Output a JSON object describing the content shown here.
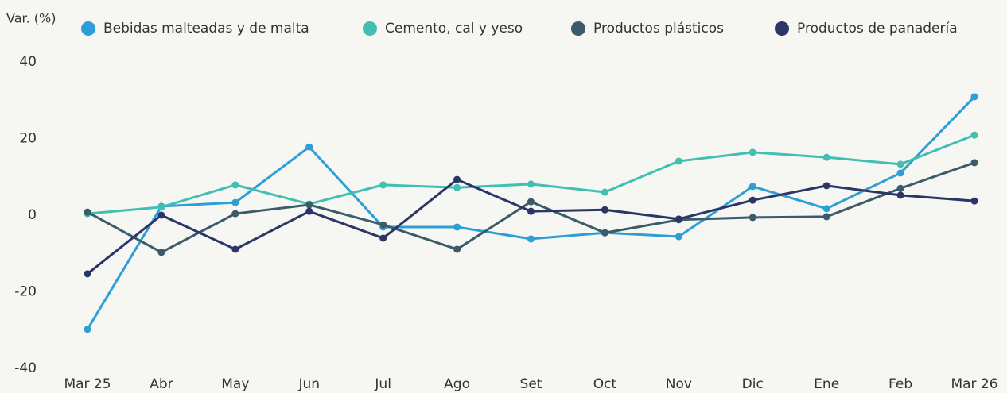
{
  "chart_data": {
    "type": "line",
    "y_axis_label": "Var. (%)",
    "categories": [
      "Mar 25",
      "Abr",
      "May",
      "Jun",
      "Jul",
      "Ago",
      "Set",
      "Oct",
      "Nov",
      "Dic",
      "Ene",
      "Feb",
      "Mar 26"
    ],
    "series": [
      {
        "name": "Bebidas malteadas y de malta",
        "color": "#2e9fd6",
        "values": [
          -29.8,
          2.3,
          3.3,
          17.8,
          -3.1,
          -3.1,
          -6.2,
          -4.6,
          -5.6,
          7.5,
          1.7,
          11.0,
          30.9
        ]
      },
      {
        "name": "Cemento, cal y yeso",
        "color": "#41c0b2",
        "values": [
          0.4,
          2.1,
          7.9,
          2.9,
          7.9,
          7.2,
          8.1,
          6.0,
          14.1,
          16.4,
          15.1,
          13.3,
          20.9
        ]
      },
      {
        "name": "Productos plásticos",
        "color": "#3a5b69",
        "values": [
          0.8,
          -9.7,
          0.4,
          2.7,
          -2.5,
          -8.9,
          3.5,
          -4.6,
          -1.2,
          -0.6,
          -0.4,
          7.0,
          13.7
        ]
      },
      {
        "name": "Productos de panadería",
        "color": "#2b3566",
        "values": [
          -15.3,
          0,
          -8.9,
          1.0,
          -6.0,
          9.3,
          1.0,
          1.4,
          -1.0,
          3.9,
          7.7,
          5.2,
          3.7
        ]
      }
    ],
    "ylim": [
      -40,
      40
    ],
    "yticks": [
      -40,
      -20,
      0,
      20,
      40
    ],
    "grid": false,
    "legend": "top"
  }
}
